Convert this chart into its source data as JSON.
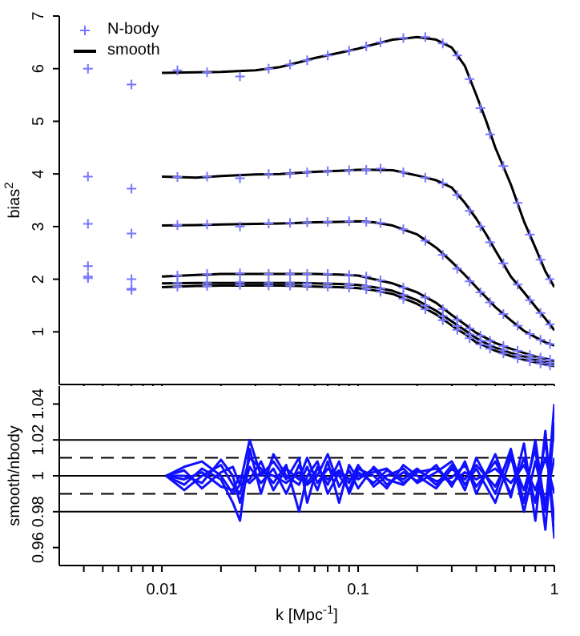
{
  "chart_data": [
    {
      "type": "line",
      "ylabel": "bias$^{2}$",
      "log": "x",
      "xlim": [
        0.003,
        1
      ],
      "ylim": [
        0,
        7
      ],
      "yticks": [
        1,
        2,
        3,
        4,
        5,
        6,
        7
      ],
      "xticks": [
        {
          "value": 0.004,
          "label": null
        },
        {
          "value": 0.005,
          "label": null
        },
        {
          "value": 0.006,
          "label": null
        },
        {
          "value": 0.007,
          "label": null
        },
        {
          "value": 0.008,
          "label": null
        },
        {
          "value": 0.009,
          "label": null
        },
        0.01,
        {
          "value": 0.02,
          "label": null
        },
        {
          "value": 0.03,
          "label": null
        },
        {
          "value": 0.04,
          "label": null
        },
        {
          "value": 0.05,
          "label": null
        },
        {
          "value": 0.06,
          "label": null
        },
        {
          "value": 0.07,
          "label": null
        },
        {
          "value": 0.08,
          "label": null
        },
        {
          "value": 0.09,
          "label": null
        },
        0.1,
        {
          "value": 0.2,
          "label": null
        },
        {
          "value": 0.3,
          "label": null
        },
        {
          "value": 0.4,
          "label": null
        },
        {
          "value": 0.5,
          "label": null
        },
        {
          "value": 0.6,
          "label": null
        },
        {
          "value": 0.7,
          "label": null
        },
        {
          "value": 0.8,
          "label": null
        },
        {
          "value": 0.9,
          "label": null
        },
        1
      ],
      "tick_labels": "y",
      "grid": false,
      "legend": "top left",
      "marker": "none",
      "x": [
        0.01,
        0.015,
        0.02,
        0.03,
        0.04,
        0.05,
        0.06,
        0.08,
        0.1,
        0.12,
        0.15,
        0.2,
        0.25,
        0.3,
        0.35,
        0.4,
        0.45,
        0.5,
        0.6,
        0.7,
        0.8,
        0.9,
        1
      ],
      "series": [
        {
          "name": "N-body",
          "type": "scatter",
          "marker": "cross",
          "color": "#7777ff",
          "x": [
            0.0042,
            0.0042,
            0.0042,
            0.0042,
            0.0042,
            0.0042,
            0.007,
            0.007,
            0.007,
            0.007,
            0.007,
            0.007,
            0.012,
            0.017,
            0.025,
            0.035,
            0.045,
            0.055,
            0.07,
            0.09,
            0.11,
            0.13,
            0.17,
            0.22,
            0.27,
            0.32,
            0.37,
            0.42,
            0.47,
            0.55,
            0.65,
            0.75,
            0.85,
            0.95,
            0.012,
            0.017,
            0.025,
            0.035,
            0.045,
            0.055,
            0.07,
            0.09,
            0.11,
            0.13,
            0.17,
            0.22,
            0.27,
            0.32,
            0.37,
            0.42,
            0.47,
            0.55,
            0.65,
            0.75,
            0.85,
            0.95,
            0.012,
            0.017,
            0.025,
            0.035,
            0.045,
            0.055,
            0.07,
            0.09,
            0.11,
            0.13,
            0.17,
            0.22,
            0.27,
            0.32,
            0.37,
            0.42,
            0.47,
            0.55,
            0.65,
            0.75,
            0.85,
            0.95,
            0.012,
            0.017,
            0.025,
            0.035,
            0.045,
            0.055,
            0.07,
            0.09,
            0.11,
            0.13,
            0.17,
            0.22,
            0.27,
            0.32,
            0.37,
            0.42,
            0.47,
            0.55,
            0.65,
            0.75,
            0.85,
            0.95,
            0.012,
            0.017,
            0.025,
            0.035,
            0.045,
            0.055,
            0.07,
            0.09,
            0.11,
            0.13,
            0.17,
            0.22,
            0.27,
            0.32,
            0.37,
            0.42,
            0.47,
            0.55,
            0.65,
            0.75,
            0.85,
            0.95,
            0.012,
            0.017,
            0.025,
            0.035,
            0.045,
            0.055,
            0.07,
            0.09,
            0.11,
            0.13,
            0.17,
            0.22,
            0.27,
            0.32,
            0.37,
            0.42,
            0.47,
            0.55,
            0.65,
            0.75,
            0.85,
            0.95
          ],
          "values": [
            6.0,
            3.95,
            3.05,
            2.25,
            2.05,
            2.02,
            5.7,
            3.72,
            2.87,
            2.0,
            1.82,
            1.8,
            5.97,
            5.93,
            5.85,
            6.0,
            6.08,
            6.16,
            6.25,
            6.34,
            6.42,
            6.5,
            6.58,
            6.6,
            6.48,
            6.25,
            5.8,
            5.25,
            4.75,
            4.15,
            3.45,
            2.85,
            2.37,
            2.0,
            3.94,
            3.95,
            3.92,
            4.0,
            4.01,
            4.03,
            4.05,
            4.07,
            4.08,
            4.1,
            4.03,
            3.93,
            3.82,
            3.6,
            3.3,
            3.0,
            2.7,
            2.3,
            1.9,
            1.6,
            1.36,
            1.14,
            3.03,
            3.04,
            3.0,
            3.06,
            3.07,
            3.08,
            3.09,
            3.1,
            3.09,
            3.07,
            2.95,
            2.73,
            2.46,
            2.2,
            1.96,
            1.75,
            1.56,
            1.34,
            1.12,
            0.96,
            0.85,
            0.77,
            2.07,
            2.1,
            2.11,
            2.1,
            2.1,
            2.1,
            2.1,
            2.08,
            2.05,
            1.98,
            1.84,
            1.65,
            1.43,
            1.23,
            1.06,
            0.93,
            0.83,
            0.73,
            0.64,
            0.56,
            0.51,
            0.47,
            1.93,
            1.93,
            1.94,
            1.93,
            1.93,
            1.92,
            1.92,
            1.9,
            1.87,
            1.82,
            1.7,
            1.5,
            1.3,
            1.11,
            0.95,
            0.83,
            0.74,
            0.65,
            0.56,
            0.5,
            0.45,
            0.41,
            1.86,
            1.87,
            1.89,
            1.88,
            1.88,
            1.87,
            1.86,
            1.84,
            1.81,
            1.76,
            1.63,
            1.43,
            1.22,
            1.04,
            0.88,
            0.76,
            0.68,
            0.59,
            0.5,
            0.44,
            0.4,
            0.36
          ]
        },
        {
          "name": "smooth",
          "color": "#000000",
          "values": [
            5.92,
            5.93,
            5.94,
            5.97,
            6.03,
            6.12,
            6.2,
            6.3,
            6.38,
            6.46,
            6.55,
            6.6,
            6.55,
            6.4,
            6.05,
            5.5,
            5.0,
            4.5,
            3.8,
            3.1,
            2.6,
            2.15,
            1.85
          ]
        },
        {
          "color": "#000000",
          "values": [
            3.95,
            3.93,
            3.96,
            3.99,
            4.0,
            4.02,
            4.04,
            4.06,
            4.08,
            4.08,
            4.07,
            3.97,
            3.88,
            3.74,
            3.45,
            3.15,
            2.85,
            2.55,
            2.05,
            1.75,
            1.48,
            1.25,
            1.03
          ]
        },
        {
          "color": "#000000",
          "values": [
            3.02,
            3.03,
            3.04,
            3.05,
            3.06,
            3.07,
            3.08,
            3.09,
            3.1,
            3.08,
            3.02,
            2.85,
            2.6,
            2.33,
            2.08,
            1.85,
            1.65,
            1.47,
            1.22,
            1.02,
            0.9,
            0.8,
            0.74
          ]
        },
        {
          "color": "#000000",
          "values": [
            2.05,
            2.08,
            2.1,
            2.1,
            2.1,
            2.1,
            2.1,
            2.09,
            2.07,
            2.0,
            1.92,
            1.75,
            1.55,
            1.32,
            1.14,
            0.98,
            0.88,
            0.79,
            0.68,
            0.6,
            0.53,
            0.49,
            0.45
          ]
        },
        {
          "color": "#000000",
          "values": [
            1.92,
            1.93,
            1.93,
            1.93,
            1.93,
            1.93,
            1.92,
            1.91,
            1.89,
            1.85,
            1.78,
            1.6,
            1.4,
            1.2,
            1.03,
            0.88,
            0.78,
            0.7,
            0.6,
            0.53,
            0.47,
            0.43,
            0.4
          ]
        },
        {
          "color": "#000000",
          "values": [
            1.85,
            1.87,
            1.88,
            1.88,
            1.88,
            1.87,
            1.86,
            1.85,
            1.83,
            1.79,
            1.72,
            1.53,
            1.33,
            1.12,
            0.96,
            0.8,
            0.72,
            0.64,
            0.54,
            0.47,
            0.42,
            0.38,
            0.35
          ]
        }
      ]
    },
    {
      "type": "line",
      "xlabel": "k [Mpc$^{-1}$]",
      "ylabel": "smooth/nbody",
      "log": "x",
      "xlim": [
        0.003,
        1
      ],
      "ylim": [
        0.95,
        1.05
      ],
      "yticks": [
        0.96,
        0.98,
        1,
        1.02,
        1.04
      ],
      "xticks": [
        {
          "value": 0.004,
          "label": null
        },
        {
          "value": 0.005,
          "label": null
        },
        {
          "value": 0.006,
          "label": null
        },
        {
          "value": 0.007,
          "label": null
        },
        {
          "value": 0.008,
          "label": null
        },
        {
          "value": 0.009,
          "label": null
        },
        0.01,
        {
          "value": 0.02,
          "label": null
        },
        {
          "value": 0.03,
          "label": null
        },
        {
          "value": 0.04,
          "label": null
        },
        {
          "value": 0.05,
          "label": null
        },
        {
          "value": 0.06,
          "label": null
        },
        {
          "value": 0.07,
          "label": null
        },
        {
          "value": 0.08,
          "label": null
        },
        {
          "value": 0.09,
          "label": null
        },
        0.1,
        {
          "value": 0.2,
          "label": null
        },
        {
          "value": 0.3,
          "label": null
        },
        {
          "value": 0.4,
          "label": null
        },
        {
          "value": 0.5,
          "label": null
        },
        {
          "value": 0.6,
          "label": null
        },
        {
          "value": 0.7,
          "label": null
        },
        {
          "value": 0.8,
          "label": null
        },
        {
          "value": 0.9,
          "label": null
        },
        1
      ],
      "grid": false,
      "marker": "none",
      "ref_lines": [
        {
          "axis": "y",
          "value": 1.02,
          "color": "#000000",
          "line_style": "solid"
        },
        {
          "axis": "y",
          "value": 1.01,
          "color": "#000000",
          "line_style": "dashed"
        },
        {
          "axis": "y",
          "value": 1,
          "color": "#000000",
          "line_style": "solid"
        },
        {
          "axis": "y",
          "value": 0.99,
          "color": "#000000",
          "line_style": "dashed"
        },
        {
          "axis": "y",
          "value": 0.98,
          "color": "#000000",
          "line_style": "solid"
        }
      ],
      "x": [
        0.0105,
        0.013,
        0.016,
        0.02,
        0.023,
        0.025,
        0.028,
        0.032,
        0.037,
        0.043,
        0.05,
        0.055,
        0.062,
        0.07,
        0.08,
        0.09,
        0.1,
        0.12,
        0.14,
        0.17,
        0.2,
        0.25,
        0.3,
        0.35,
        0.4,
        0.5,
        0.6,
        0.7,
        0.8,
        0.9,
        1
      ],
      "series": [
        {
          "color": "#1010ff",
          "values": [
            1,
            1.005,
            1.008,
            1.0,
            0.99,
            0.995,
            1.02,
            1.0,
            1.008,
            0.998,
            1.01,
            0.985,
            1.005,
            0.995,
            1.008,
            0.99,
            1.002,
            0.996,
            1.003,
            0.998,
            1.004,
            0.995,
            1.006,
            0.992,
            1.01,
            0.99,
            1.015,
            0.985,
            1.02,
            0.98,
            1.04
          ]
        },
        {
          "color": "#1010ff",
          "values": [
            1,
            0.995,
            1.004,
            0.998,
            0.985,
            0.975,
            1.015,
            0.99,
            1.012,
            1.0,
            0.995,
            1.005,
            0.992,
            1.008,
            0.985,
            1.006,
            0.998,
            1.004,
            0.995,
            1.002,
            0.997,
            1.006,
            0.994,
            1.008,
            0.99,
            1.012,
            0.988,
            1.018,
            0.975,
            1.025,
            0.965
          ]
        },
        {
          "color": "#1010ff",
          "values": [
            1,
            0.992,
            1.0,
            1.006,
            0.995,
            0.99,
            1.01,
            1.004,
            0.996,
            1.006,
            0.98,
            1.0,
            1.008,
            0.99,
            1.002,
            0.996,
            1.006,
            0.994,
            1.0,
            1.004,
            0.996,
            1.002,
            1.008,
            0.995,
            1.004,
            0.985,
            1.01,
            0.992,
            1.015,
            0.97,
            1.03
          ]
        },
        {
          "color": "#1010ff",
          "values": [
            1,
            1.0,
            0.996,
            1.009,
            1.0,
            0.985,
            1.005,
            0.996,
            1.004,
            0.99,
            1.006,
            0.995,
            1.0,
            1.012,
            0.994,
            1.003,
            0.993,
            1.005,
            0.998,
            0.995,
            1.003,
            0.997,
            0.999,
            1.006,
            0.994,
            1.008,
            0.99,
            1.01,
            0.985,
            1.02,
            0.975
          ]
        },
        {
          "color": "#1010ff",
          "values": [
            1,
            1.003,
            0.993,
            1.002,
            1.005,
            0.995,
            0.998,
            1.008,
            0.992,
            1.004,
            0.998,
            1.01,
            0.996,
            1.004,
            1.0,
            0.992,
            1.004,
            1.0,
            0.993,
            1.006,
            1.0,
            0.993,
            1.004,
            0.998,
            1.006,
            0.994,
            1.012,
            0.98,
            1.008,
            0.985,
            1.01
          ]
        },
        {
          "color": "#1010ff",
          "values": [
            1,
            0.998,
            1.002,
            0.994,
            0.992,
            1.0,
            0.996,
            1.002,
            1.0,
            0.996,
            1.002,
            0.996,
            1.004,
            0.998,
            1.003,
            0.998,
            1.0,
            1.002,
            1.004,
            0.996,
            1.002,
            1.004,
            0.996,
            1.002,
            0.998,
            1.004,
            0.996,
            1.006,
            0.992,
            1.01,
            0.99
          ]
        }
      ]
    }
  ]
}
